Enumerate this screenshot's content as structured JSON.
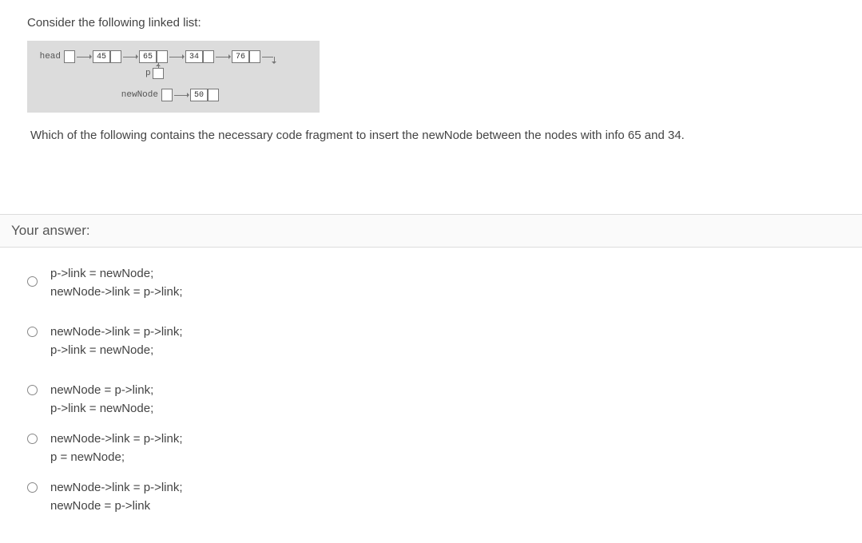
{
  "question": {
    "prompt": "Consider the following linked list:",
    "followup": "Which of the following contains the necessary code fragment to insert the newNode between the nodes with info 65 and 34."
  },
  "diagram": {
    "head_label": "head",
    "nodes": [
      "45",
      "65",
      "34",
      "76"
    ],
    "p_label": "p",
    "newnode_label": "newNode",
    "newnode_value": "50",
    "bg_color": "#dcdcdc",
    "border_color": "#777777"
  },
  "answer_header": "Your answer:",
  "options": [
    {
      "line1": "p->link = newNode;",
      "line2": "newNode->link = p->link;"
    },
    {
      "line1": "newNode->link = p->link;",
      "line2": "p->link = newNode;"
    },
    {
      "line1": "newNode = p->link;",
      "line2": "p->link = newNode;"
    },
    {
      "line1": "newNode->link = p->link;",
      "line2": "p = newNode;"
    },
    {
      "line1": "newNode->link = p->link;",
      "line2": "newNode = p->link"
    }
  ]
}
